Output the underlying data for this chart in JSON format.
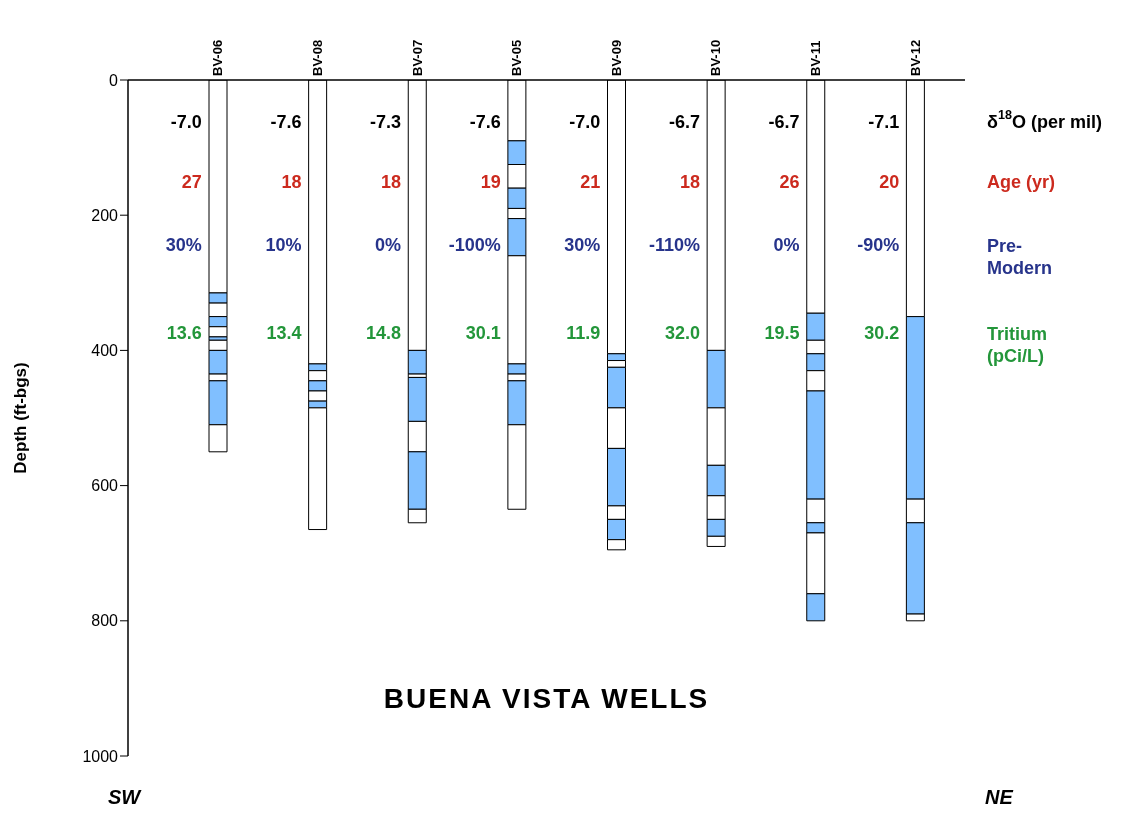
{
  "chart_data": {
    "type": "bar",
    "stacked": true,
    "title": "BUENA VISTA WELLS",
    "ylabel": "Depth (ft-bgs)",
    "categories": [
      "BV-06",
      "BV-08",
      "BV-07",
      "BV-05",
      "BV-09",
      "BV-10",
      "BV-11",
      "BV-12"
    ],
    "ylim": [
      1000,
      0
    ],
    "yticks": [
      0,
      200,
      400,
      600,
      800,
      1000
    ],
    "series": [
      {
        "color": "#ffffff",
        "values": [
          315,
          420,
          400,
          90,
          405,
          400,
          345,
          350
        ]
      },
      {
        "color": "#80bfff",
        "values": [
          15,
          10,
          35,
          35,
          10,
          85,
          40,
          270
        ]
      },
      {
        "color": "#ffffff",
        "values": [
          20,
          15,
          5,
          35,
          10,
          85,
          20,
          35
        ]
      },
      {
        "color": "#80bfff",
        "values": [
          15,
          15,
          65,
          30,
          60,
          45,
          25,
          135
        ]
      },
      {
        "color": "#ffffff",
        "values": [
          15,
          15,
          45,
          15,
          60,
          35,
          30,
          null
        ]
      },
      {
        "color": "#80bfff",
        "values": [
          5,
          10,
          85,
          55,
          85,
          25,
          160,
          null
        ]
      },
      {
        "color": "#ffffff",
        "values": [
          15,
          null,
          null,
          160,
          20,
          null,
          35,
          null
        ]
      },
      {
        "color": "#80bfff",
        "values": [
          35,
          null,
          null,
          15,
          30,
          null,
          15,
          null
        ]
      },
      {
        "color": "#ffffff",
        "values": [
          10,
          null,
          null,
          10,
          null,
          null,
          90,
          null
        ]
      },
      {
        "color": "#80bfff",
        "values": [
          65,
          null,
          null,
          65,
          null,
          null,
          40,
          null
        ]
      },
      {
        "color": "#ffffff",
        "values": [
          40,
          180,
          20,
          125,
          15,
          15,
          null,
          10
        ]
      }
    ],
    "annotations": [
      "-7.0",
      "27",
      "30%",
      "13.6",
      "-7.6",
      "18",
      "10%",
      "13.4",
      "-7.3",
      "18",
      "0%",
      "14.8",
      "-7.6",
      "19",
      "-100%",
      "30.1",
      "-7.0",
      "21",
      "30%",
      "11.9",
      "-6.7",
      "18",
      "-110%",
      "32.0",
      "-6.7",
      "26",
      "0%",
      "19.5",
      "-7.1",
      "20",
      "-90%",
      "30.2",
      "δ$^{18}$O (per mil)",
      "Age (yr)",
      "Pre-Modern",
      "Tritium (pCi/L)",
      "SW",
      "NE"
    ]
  }
}
